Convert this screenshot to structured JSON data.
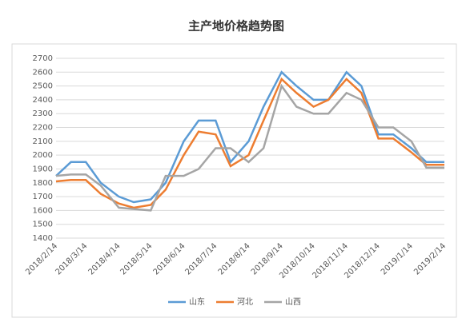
{
  "chart_data": {
    "type": "line",
    "title": "主产地价格趋势图",
    "x": [
      "2018/2/14",
      "2018/2/28",
      "2018/3/14",
      "2018/3/28",
      "2018/4/14",
      "2018/4/28",
      "2018/5/14",
      "2018/5/28",
      "2018/6/14",
      "2018/6/28",
      "2018/7/14",
      "2018/7/28",
      "2018/8/14",
      "2018/8/28",
      "2018/9/14",
      "2018/9/28",
      "2018/10/14",
      "2018/10/28",
      "2018/11/14",
      "2018/11/28",
      "2018/12/14",
      "2018/12/28",
      "2019/1/14",
      "2019/1/28",
      "2019/2/14"
    ],
    "xticks": [
      "2018/2/14",
      "2018/3/14",
      "2018/4/14",
      "2018/5/14",
      "2018/6/14",
      "2018/7/14",
      "2018/8/14",
      "2018/9/14",
      "2018/10/14",
      "2018/11/14",
      "2018/12/14",
      "2019/1/14",
      "2019/2/14"
    ],
    "series": [
      {
        "name": "山东",
        "color": "#5b9bd5",
        "values": [
          1850,
          1950,
          1950,
          1800,
          1700,
          1660,
          1680,
          1800,
          2100,
          2250,
          2250,
          1950,
          2100,
          2350,
          2600,
          2500,
          2400,
          2400,
          2600,
          2500,
          2150,
          2150,
          2050,
          1950,
          1950
        ]
      },
      {
        "name": "河北",
        "color": "#ed7d31",
        "values": [
          1810,
          1820,
          1820,
          1720,
          1650,
          1620,
          1640,
          1750,
          2000,
          2170,
          2150,
          1920,
          2000,
          2250,
          2550,
          2450,
          2350,
          2400,
          2550,
          2450,
          2120,
          2120,
          2020,
          1930,
          1930
        ]
      },
      {
        "name": "山西",
        "color": "#a5a5a5",
        "values": [
          1850,
          1860,
          1860,
          1780,
          1620,
          1610,
          1600,
          1850,
          1850,
          1900,
          2050,
          2050,
          1950,
          2050,
          2500,
          2350,
          2300,
          2300,
          2450,
          2400,
          2200,
          2200,
          2100,
          1910,
          1910
        ]
      }
    ],
    "ylim": [
      1400,
      2700
    ],
    "yticks": [
      1400,
      1500,
      1600,
      1700,
      1800,
      1900,
      2000,
      2100,
      2200,
      2300,
      2400,
      2500,
      2600,
      2700
    ],
    "grid": true,
    "legend": "bottom"
  }
}
